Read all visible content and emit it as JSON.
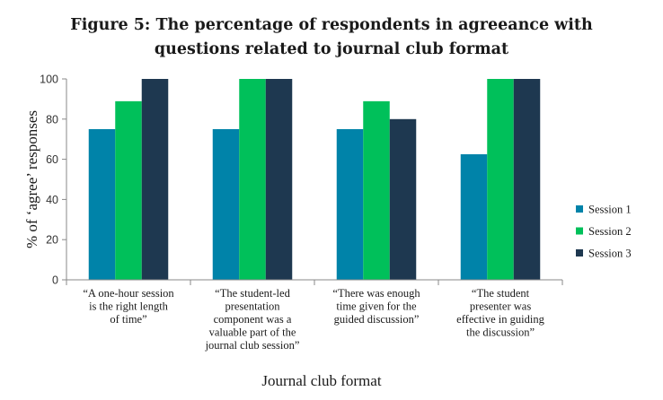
{
  "chart_data": {
    "type": "bar",
    "title": "Figure 5: The percentage of respondents in agreeance with questions related to journal club format",
    "title_lines": [
      "Figure 5: The percentage of respondents in agreeance with",
      "questions related to journal club format"
    ],
    "xlabel": "Journal club format",
    "ylabel": "% of ‘agree’ responses",
    "ylim": [
      0,
      100
    ],
    "yticks": [
      "0",
      "20",
      "40",
      "60",
      "80",
      "100"
    ],
    "grid": false,
    "legend_position": "right",
    "categories": [
      "“A one-hour session is the right length of time”",
      "“The student-led presentation component was a valuable part of the journal club session”",
      "“There was enough time given for the guided discussion”",
      "“The student presenter was effective in guiding the discussion”"
    ],
    "category_lines": [
      [
        "“A one-hour session",
        "is the right length",
        "of time”"
      ],
      [
        "“The student-led",
        "presentation",
        "component was a",
        "valuable part of the",
        "journal club session”"
      ],
      [
        "“There was enough",
        "time given for the",
        "guided discussion”"
      ],
      [
        "“The student",
        "presenter was",
        "effective in guiding",
        "the discussion”"
      ]
    ],
    "series": [
      {
        "name": "Session 1",
        "color": "#0083a9",
        "values": [
          75,
          75,
          75,
          62.5
        ]
      },
      {
        "name": "Session 2",
        "color": "#00c05a",
        "values": [
          88.9,
          100,
          88.9,
          100
        ]
      },
      {
        "name": "Session 3",
        "color": "#1e3850",
        "values": [
          100,
          100,
          80,
          100
        ]
      }
    ]
  }
}
